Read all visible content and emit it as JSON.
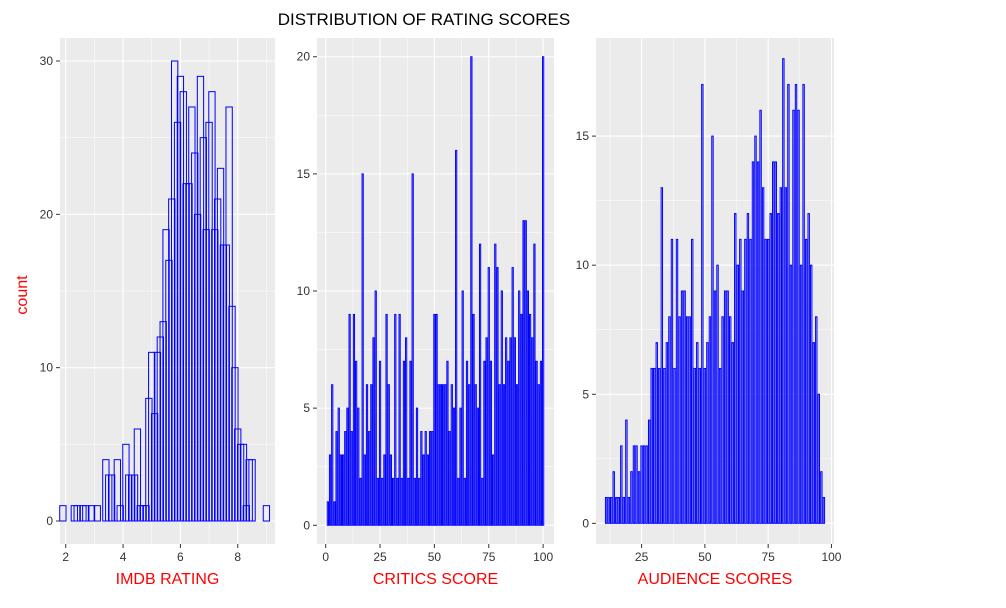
{
  "title": "DISTRIBUTION OF RATING SCORES",
  "y_axis_title": "count",
  "colors": {
    "bar": "#0000ff",
    "panel_background": "#ebebeb",
    "gridline": "#ffffff",
    "axis_title": "#ff0000"
  },
  "chart_data": [
    {
      "type": "bar",
      "xlabel": "IMDB RATING",
      "ylabel": "count",
      "xlim": [
        1.8,
        9.3
      ],
      "ylim": [
        -1.5,
        31.5
      ],
      "x_ticks": [
        2,
        4,
        6,
        8
      ],
      "y_ticks": [
        0,
        10,
        20,
        30
      ],
      "x": [
        1.9,
        2.3,
        2.4,
        2.6,
        2.7,
        2.9,
        3.1,
        3.4,
        3.5,
        3.6,
        3.8,
        3.9,
        4.1,
        4.2,
        4.3,
        4.4,
        4.5,
        4.6,
        4.7,
        4.8,
        4.9,
        5.0,
        5.1,
        5.2,
        5.3,
        5.4,
        5.5,
        5.6,
        5.7,
        5.8,
        5.9,
        6.0,
        6.1,
        6.2,
        6.3,
        6.4,
        6.5,
        6.6,
        6.7,
        6.8,
        6.9,
        7.0,
        7.1,
        7.2,
        7.3,
        7.4,
        7.5,
        7.6,
        7.7,
        7.8,
        7.9,
        8.0,
        8.1,
        8.2,
        8.3,
        8.4,
        8.5,
        9.0
      ],
      "values": [
        1,
        1,
        1,
        1,
        1,
        1,
        1,
        4,
        3,
        3,
        4,
        1,
        5,
        3,
        3,
        3,
        6,
        1,
        1,
        1,
        8,
        11,
        7,
        11,
        12,
        13,
        19,
        17,
        21,
        30,
        26,
        29,
        28,
        22,
        22,
        27,
        24,
        20,
        29,
        25,
        19,
        26,
        28,
        19,
        21,
        23,
        18,
        18,
        27,
        14,
        10,
        6,
        5,
        5,
        1,
        4,
        4,
        1
      ]
    },
    {
      "type": "bar",
      "xlabel": "CRITICS SCORE",
      "ylabel": "",
      "xlim": [
        -4,
        105
      ],
      "ylim": [
        -0.8,
        20.8
      ],
      "x_ticks": [
        0,
        25,
        50,
        75,
        100
      ],
      "y_ticks": [
        0,
        5,
        10,
        15,
        20
      ],
      "x": [
        1,
        2,
        3,
        4,
        5,
        6,
        7,
        8,
        9,
        10,
        11,
        12,
        13,
        14,
        15,
        16,
        17,
        18,
        19,
        20,
        21,
        22,
        23,
        24,
        25,
        26,
        27,
        28,
        29,
        30,
        31,
        32,
        33,
        34,
        35,
        36,
        37,
        38,
        39,
        40,
        41,
        42,
        43,
        44,
        45,
        46,
        47,
        48,
        49,
        50,
        51,
        52,
        53,
        54,
        55,
        56,
        57,
        58,
        59,
        60,
        61,
        62,
        63,
        64,
        65,
        66,
        67,
        68,
        69,
        70,
        71,
        72,
        73,
        74,
        75,
        76,
        77,
        78,
        79,
        80,
        81,
        82,
        83,
        84,
        85,
        86,
        87,
        88,
        89,
        90,
        91,
        92,
        93,
        94,
        95,
        96,
        97,
        98,
        99,
        100
      ],
      "values": [
        1,
        3,
        6,
        1,
        4,
        5,
        3,
        3,
        4,
        5,
        9,
        4,
        9,
        7,
        5,
        2,
        15,
        3,
        6,
        4,
        6,
        8,
        10,
        2,
        7,
        2,
        3,
        9,
        6,
        3,
        2,
        9,
        2,
        9,
        2,
        7,
        8,
        2,
        7,
        15,
        2,
        5,
        2,
        4,
        3,
        4,
        3,
        4,
        4,
        9,
        9,
        6,
        6,
        6,
        6,
        7,
        4,
        6,
        5,
        16,
        2,
        5,
        10,
        2,
        7,
        6,
        20,
        9,
        6,
        5,
        12,
        2,
        7,
        8,
        11,
        7,
        3,
        12,
        11,
        6,
        10,
        6,
        8,
        7,
        8,
        11,
        8,
        6,
        10,
        9,
        13,
        13,
        10,
        9,
        8,
        12,
        7,
        6,
        7,
        20
      ]
    },
    {
      "type": "bar",
      "xlabel": "AUDIENCE SCORES",
      "ylabel": "",
      "xlim": [
        7,
        101
      ],
      "ylim": [
        -0.8,
        18.8
      ],
      "x_ticks": [
        25,
        50,
        75,
        100
      ],
      "y_ticks": [
        0,
        5,
        10,
        15
      ],
      "x": [
        11,
        12,
        13,
        14,
        15,
        16,
        17,
        18,
        19,
        20,
        21,
        22,
        23,
        24,
        25,
        26,
        27,
        28,
        29,
        30,
        31,
        32,
        33,
        34,
        35,
        36,
        37,
        38,
        39,
        40,
        41,
        42,
        43,
        44,
        45,
        46,
        47,
        48,
        49,
        50,
        51,
        52,
        53,
        54,
        55,
        56,
        57,
        58,
        59,
        60,
        61,
        62,
        63,
        64,
        65,
        66,
        67,
        68,
        69,
        70,
        71,
        72,
        73,
        74,
        75,
        76,
        77,
        78,
        79,
        80,
        81,
        82,
        83,
        84,
        85,
        86,
        87,
        88,
        89,
        90,
        91,
        92,
        93,
        94,
        95,
        96,
        97
      ],
      "values": [
        1,
        1,
        1,
        2,
        1,
        1,
        3,
        1,
        4,
        1,
        2,
        3,
        3,
        2,
        3,
        3,
        3,
        4,
        6,
        6,
        7,
        6,
        13,
        6,
        7,
        8,
        11,
        6,
        11,
        8,
        9,
        9,
        8,
        8,
        11,
        6,
        7,
        6,
        17,
        6,
        7,
        8,
        15,
        9,
        10,
        6,
        8,
        9,
        9,
        8,
        7,
        12,
        10,
        11,
        9,
        11,
        12,
        11,
        14,
        15,
        14,
        16,
        13,
        11,
        11,
        12,
        14,
        14,
        12,
        13,
        18,
        13,
        17,
        10,
        16,
        17,
        16,
        10,
        17,
        11,
        12,
        10,
        7,
        8,
        5,
        2,
        1
      ]
    }
  ]
}
